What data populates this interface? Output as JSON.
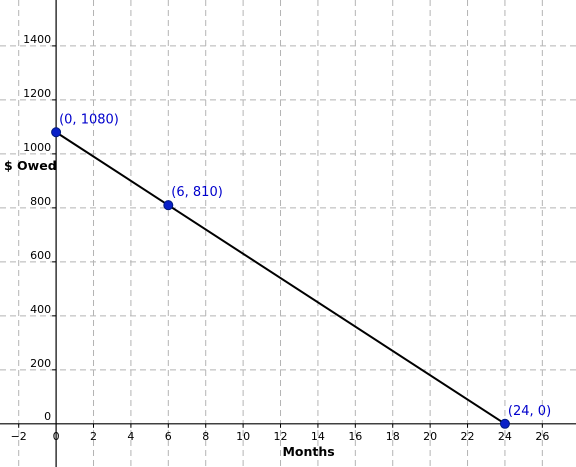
{
  "chart_data": {
    "type": "line",
    "title": "",
    "xlabel": "Months",
    "ylabel": "$ Owed",
    "xlim": [
      -3,
      27.8
    ],
    "ylim": [
      -160,
      1570
    ],
    "x_ticks": [
      -2,
      0,
      2,
      4,
      6,
      8,
      10,
      12,
      14,
      16,
      18,
      20,
      22,
      24,
      26
    ],
    "y_ticks": [
      0,
      200,
      400,
      600,
      800,
      1000,
      1200,
      1400
    ],
    "grid": true,
    "series": [
      {
        "color": "#000000",
        "points": [
          {
            "x": 0,
            "y": 1080,
            "label": "(0, 1080)"
          },
          {
            "x": 6,
            "y": 810,
            "label": "(6, 810)"
          },
          {
            "x": 24,
            "y": 0,
            "label": "(24, 0)"
          }
        ]
      }
    ],
    "point_color": "#0a20c8",
    "label_color": "#0000cc"
  }
}
